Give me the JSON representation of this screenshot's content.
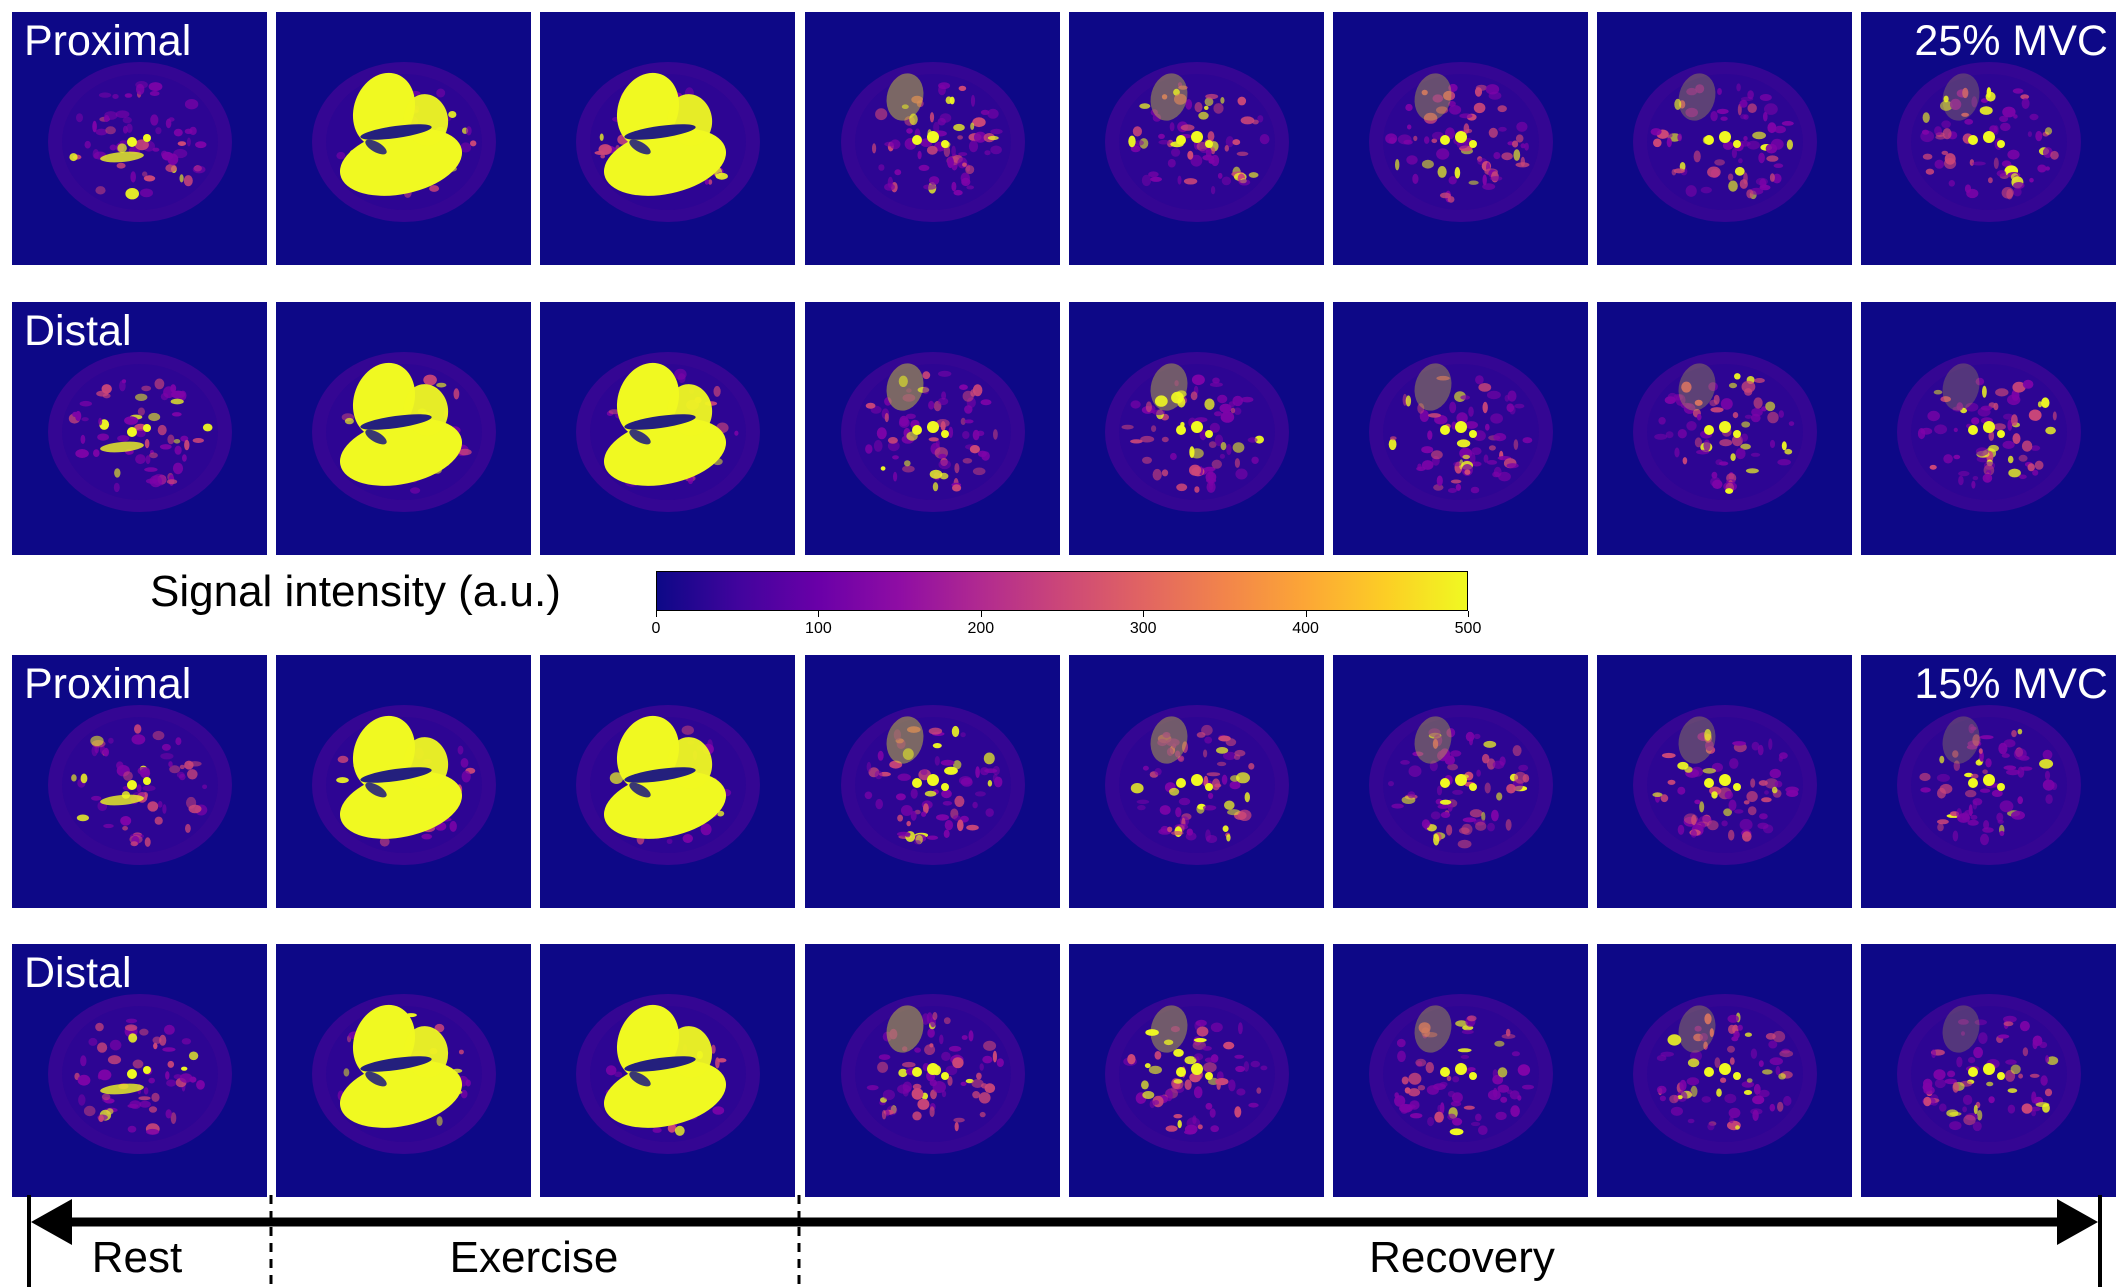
{
  "rows": [
    {
      "label": "Proximal",
      "condition": "25% MVC"
    },
    {
      "label": "Distal",
      "condition": ""
    },
    {
      "label": "Proximal",
      "condition": "15% MVC"
    },
    {
      "label": "Distal",
      "condition": ""
    }
  ],
  "panel_phases": [
    "rest",
    "exercise",
    "exercise",
    "recovery",
    "recovery",
    "recovery",
    "recovery",
    "recovery"
  ],
  "colorbar": {
    "title": "Signal intensity (a.u.)",
    "colormap": "plasma",
    "ticks": [
      "0",
      "100",
      "200",
      "300",
      "400",
      "500"
    ],
    "range": [
      0,
      500
    ]
  },
  "timeline": {
    "phases": [
      "Rest",
      "Exercise",
      "Recovery"
    ]
  },
  "colors": {
    "background": "#0d0887",
    "saturated": "#f0f921",
    "mid": "#cc4778",
    "low": "#7e03a8"
  }
}
